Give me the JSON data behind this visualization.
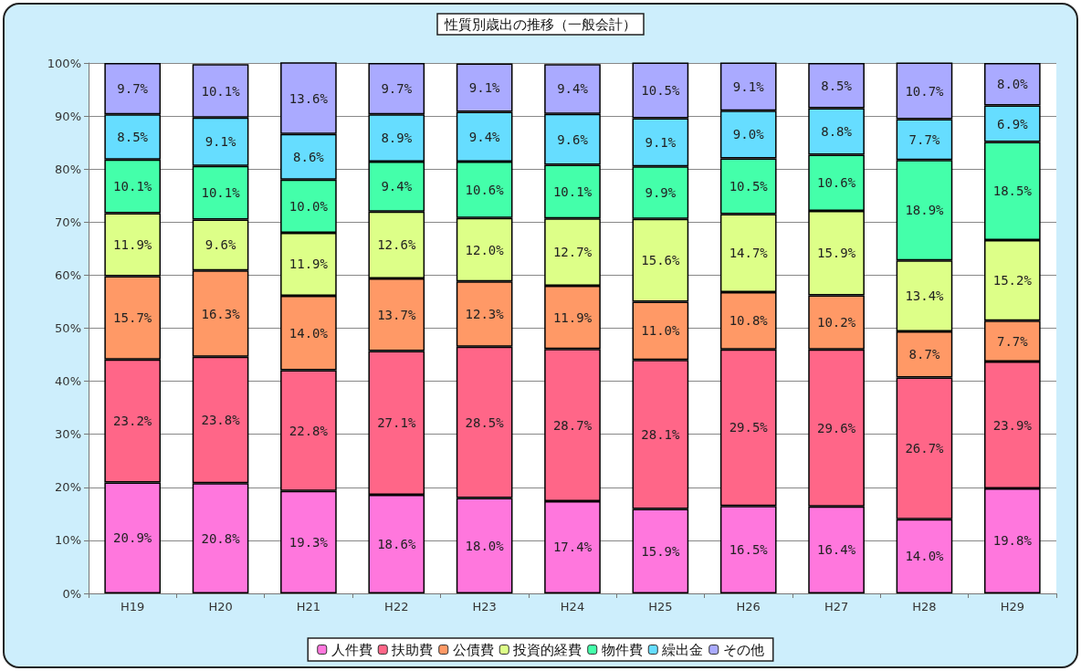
{
  "chart_data": {
    "type": "bar",
    "stacked": true,
    "title": "性質別歳出の推移（一般会計）",
    "categories": [
      "H19",
      "H20",
      "H21",
      "H22",
      "H23",
      "H24",
      "H25",
      "H26",
      "H27",
      "H28",
      "H29"
    ],
    "ylim": [
      0,
      100
    ],
    "yticks": [
      {
        "value": 0,
        "label": "0%"
      },
      {
        "value": 10,
        "label": "10%"
      },
      {
        "value": 20,
        "label": "20%"
      },
      {
        "value": 30,
        "label": "30%"
      },
      {
        "value": 40,
        "label": "40%"
      },
      {
        "value": 50,
        "label": "50%"
      },
      {
        "value": 60,
        "label": "60%"
      },
      {
        "value": 70,
        "label": "70%"
      },
      {
        "value": 80,
        "label": "80%"
      },
      {
        "value": 90,
        "label": "90%"
      },
      {
        "value": 100,
        "label": "100%"
      }
    ],
    "grid": "y",
    "legend": "bottom",
    "series": [
      {
        "name": "人件費",
        "color": "#ff77dd",
        "values": [
          20.9,
          20.8,
          19.3,
          18.6,
          18.0,
          17.4,
          15.9,
          16.5,
          16.4,
          14.0,
          19.8
        ],
        "value_labels": [
          "20.9%",
          "20.8%",
          "19.3%",
          "18.6%",
          "18.0%",
          "17.4%",
          "15.9%",
          "16.5%",
          "16.4%",
          "14.0%",
          "19.8%"
        ]
      },
      {
        "name": "扶助費",
        "color": "#ff6688",
        "values": [
          23.2,
          23.8,
          22.8,
          27.1,
          28.5,
          28.7,
          28.1,
          29.5,
          29.6,
          26.7,
          23.9
        ],
        "value_labels": [
          "23.2%",
          "23.8%",
          "22.8%",
          "27.1%",
          "28.5%",
          "28.7%",
          "28.1%",
          "29.5%",
          "29.6%",
          "26.7%",
          "23.9%"
        ]
      },
      {
        "name": "公債費",
        "color": "#ff9966",
        "values": [
          15.7,
          16.3,
          14.0,
          13.7,
          12.3,
          11.9,
          11.0,
          10.8,
          10.2,
          8.7,
          7.7
        ],
        "value_labels": [
          "15.7%",
          "16.3%",
          "14.0%",
          "13.7%",
          "12.3%",
          "11.9%",
          "11.0%",
          "10.8%",
          "10.2%",
          "8.7%",
          "7.7%"
        ]
      },
      {
        "name": "投資的経費",
        "color": "#ddff88",
        "values": [
          11.9,
          9.6,
          11.9,
          12.6,
          12.0,
          12.7,
          15.6,
          14.7,
          15.9,
          13.4,
          15.2
        ],
        "value_labels": [
          "11.9%",
          "9.6%",
          "11.9%",
          "12.6%",
          "12.0%",
          "12.7%",
          "15.6%",
          "14.7%",
          "15.9%",
          "13.4%",
          "15.2%"
        ]
      },
      {
        "name": "物件費",
        "color": "#44ffaa",
        "values": [
          10.1,
          10.1,
          10.0,
          9.4,
          10.6,
          10.1,
          9.9,
          10.5,
          10.6,
          18.9,
          18.5
        ],
        "value_labels": [
          "10.1%",
          "10.1%",
          "10.0%",
          "9.4%",
          "10.6%",
          "10.1%",
          "9.9%",
          "10.5%",
          "10.6%",
          "18.9%",
          "18.5%"
        ]
      },
      {
        "name": "繰出金",
        "color": "#66ddff",
        "values": [
          8.5,
          9.1,
          8.6,
          8.9,
          9.4,
          9.6,
          9.1,
          9.0,
          8.8,
          7.7,
          6.9
        ],
        "value_labels": [
          "8.5%",
          "9.1%",
          "8.6%",
          "8.9%",
          "9.4%",
          "9.6%",
          "9.1%",
          "9.0%",
          "8.8%",
          "7.7%",
          "6.9%"
        ]
      },
      {
        "name": "その他",
        "color": "#aaaaff",
        "values": [
          9.7,
          10.1,
          13.6,
          9.7,
          9.1,
          9.4,
          10.5,
          9.1,
          8.5,
          10.7,
          8.0
        ],
        "value_labels": [
          "9.7%",
          "10.1%",
          "13.6%",
          "9.7%",
          "9.1%",
          "9.4%",
          "10.5%",
          "9.1%",
          "8.5%",
          "10.7%",
          "8.0%"
        ]
      }
    ]
  }
}
